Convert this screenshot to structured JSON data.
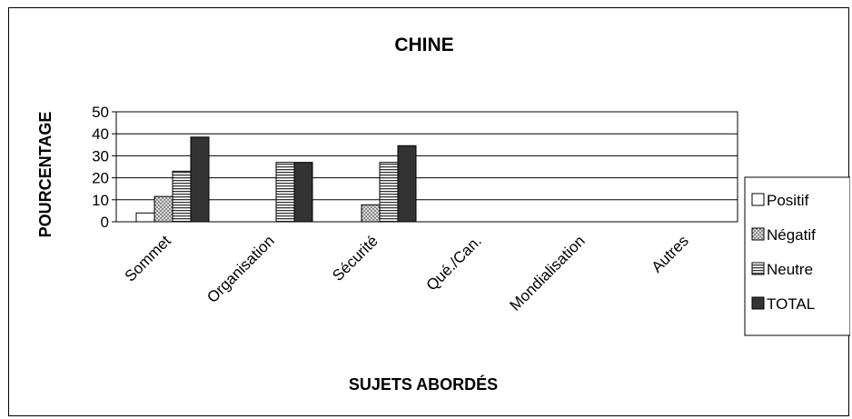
{
  "chart_data": {
    "type": "bar",
    "title": "CHINE",
    "xlabel": "SUJETS ABORDÉS",
    "ylabel": "POURCENTAGE",
    "ylim": [
      0,
      50
    ],
    "yticks": [
      0,
      10,
      20,
      30,
      40,
      50
    ],
    "grid": true,
    "legend_position": "right",
    "categories": [
      "Sommet",
      "Organisation",
      "Sécurité",
      "Qué./Can.",
      "Mondialisation",
      "Autres"
    ],
    "series": [
      {
        "name": "Positif",
        "pattern": "white",
        "values": [
          4,
          0,
          0,
          0,
          0,
          0
        ]
      },
      {
        "name": "Négatif",
        "pattern": "dots",
        "values": [
          11.5,
          0,
          7.7,
          0,
          0,
          0
        ]
      },
      {
        "name": "Neutre",
        "pattern": "horizontal-lines",
        "values": [
          23,
          27,
          27,
          0,
          0,
          0
        ]
      },
      {
        "name": "TOTAL",
        "pattern": "dark",
        "values": [
          38.5,
          27,
          34.6,
          0,
          0,
          0
        ]
      }
    ]
  }
}
